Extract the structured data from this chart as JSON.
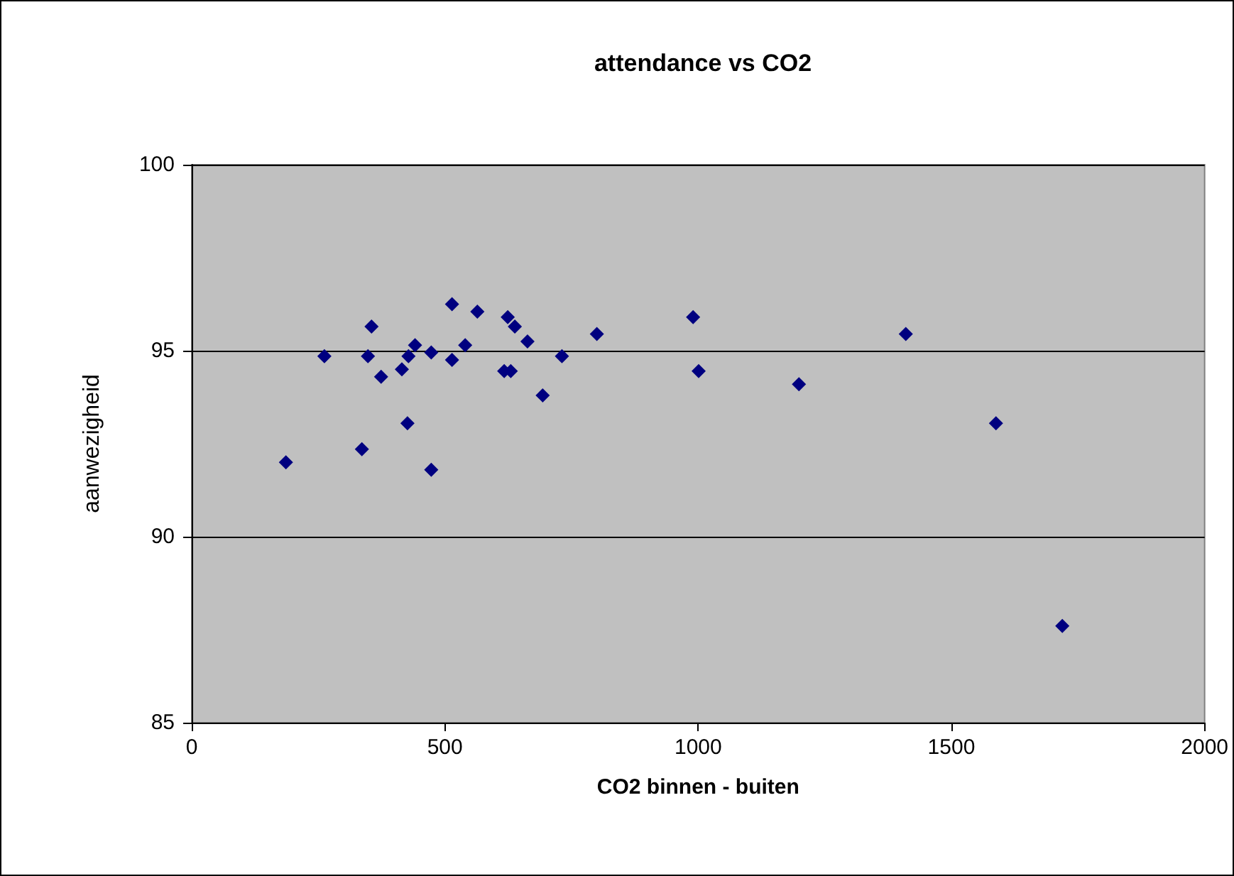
{
  "chart_data": {
    "type": "scatter",
    "title": "attendance vs CO2",
    "xlabel": "CO2 binnen - buiten",
    "ylabel": "aanwezigheid",
    "x": [
      186,
      262,
      336,
      348,
      355,
      374,
      415,
      426,
      428,
      441,
      473,
      473,
      514,
      514,
      540,
      564,
      624,
      638,
      617,
      630,
      663,
      693,
      731,
      800,
      990,
      1001,
      1199,
      1410,
      1588,
      1719
    ],
    "values": [
      92.0,
      94.85,
      92.35,
      94.85,
      95.65,
      94.3,
      94.5,
      93.05,
      94.85,
      95.15,
      94.95,
      91.8,
      96.25,
      94.75,
      95.15,
      96.05,
      95.9,
      95.65,
      94.45,
      94.45,
      95.25,
      93.8,
      94.85,
      95.45,
      95.9,
      94.45,
      94.1,
      95.45,
      93.05,
      87.6
    ],
    "color": "#000080",
    "marker": "diamond",
    "xlim": [
      0,
      2000
    ],
    "xticks": [
      0,
      500,
      1000,
      1500,
      2000
    ],
    "ylim": [
      85,
      100
    ],
    "yticks": [
      85,
      90,
      95,
      100
    ],
    "grid": "y"
  }
}
